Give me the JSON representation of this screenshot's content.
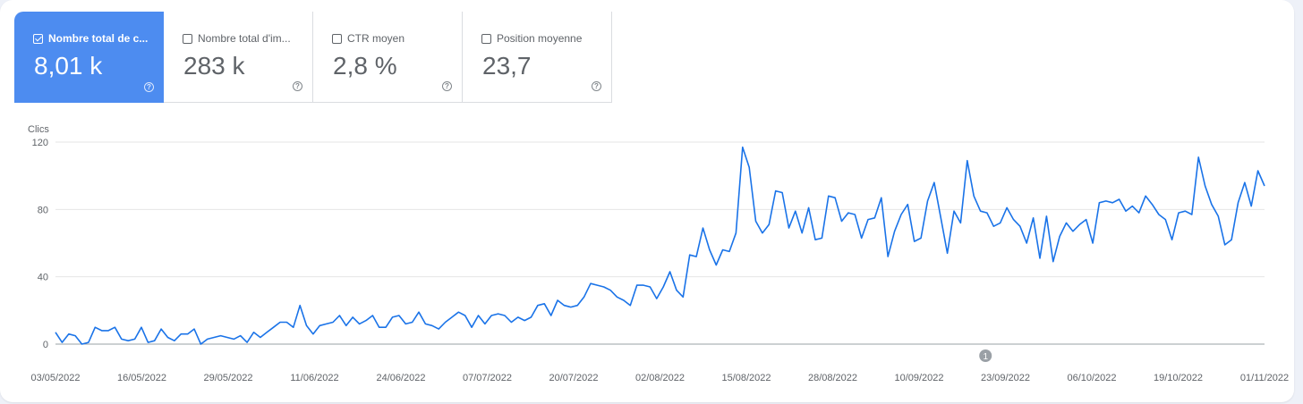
{
  "metric_cards": [
    {
      "label": "Nombre total de c...",
      "value": "8,01 k",
      "checked": true,
      "help_icon": "help-circle-icon"
    },
    {
      "label": "Nombre total d'im...",
      "value": "283 k",
      "checked": false,
      "help_icon": "help-circle-icon"
    },
    {
      "label": "CTR moyen",
      "value": "2,8 %",
      "checked": false,
      "help_icon": "help-circle-icon"
    },
    {
      "label": "Position moyenne",
      "value": "23,7",
      "checked": false,
      "help_icon": "help-circle-icon"
    }
  ],
  "chart_data": {
    "type": "line",
    "ylabel": "Clics",
    "ylim": [
      0,
      120
    ],
    "yticks": [
      0,
      40,
      80,
      120
    ],
    "xtick_labels": [
      "03/05/2022",
      "16/05/2022",
      "29/05/2022",
      "11/06/2022",
      "24/06/2022",
      "07/07/2022",
      "20/07/2022",
      "02/08/2022",
      "15/08/2022",
      "28/08/2022",
      "10/09/2022",
      "23/09/2022",
      "06/10/2022",
      "19/10/2022",
      "01/11/2022"
    ],
    "grid": true,
    "line_color": "#1a73e8",
    "annotation": {
      "label": "1",
      "date": "20/09/2022"
    },
    "series": [
      {
        "x_start": "03/05/2022",
        "x_end": "01/11/2022",
        "values": [
          7,
          1,
          6,
          5,
          0,
          1,
          10,
          8,
          8,
          10,
          3,
          2,
          3,
          10,
          1,
          2,
          9,
          4,
          2,
          6,
          6,
          9,
          0,
          3,
          4,
          5,
          4,
          3,
          5,
          1,
          7,
          4,
          7,
          10,
          13,
          13,
          10,
          23,
          11,
          6,
          11,
          12,
          13,
          17,
          11,
          16,
          12,
          14,
          17,
          10,
          10,
          16,
          17,
          12,
          13,
          19,
          12,
          11,
          9,
          13,
          16,
          19,
          17,
          10,
          17,
          12,
          17,
          18,
          17,
          13,
          16,
          14,
          16,
          23,
          24,
          17,
          26,
          23,
          22,
          23,
          28,
          36,
          35,
          34,
          32,
          28,
          26,
          23,
          35,
          35,
          34,
          27,
          34,
          43,
          32,
          28,
          53,
          52,
          69,
          56,
          47,
          56,
          55,
          66,
          117,
          105,
          73,
          66,
          71,
          91,
          90,
          69,
          79,
          66,
          81,
          62,
          63,
          88,
          87,
          73,
          78,
          77,
          63,
          74,
          75,
          87,
          52,
          67,
          77,
          83,
          61,
          63,
          85,
          96,
          75,
          54,
          79,
          72,
          109,
          88,
          79,
          78,
          70,
          72,
          81,
          74,
          70,
          60,
          75,
          51,
          76,
          49,
          64,
          72,
          67,
          71,
          74,
          60,
          84,
          85,
          84,
          86,
          79,
          82,
          78,
          88,
          83,
          77,
          74,
          62,
          78,
          79,
          77,
          111,
          94,
          83,
          76,
          59,
          62,
          84,
          96,
          82,
          103,
          94
        ]
      }
    ]
  }
}
